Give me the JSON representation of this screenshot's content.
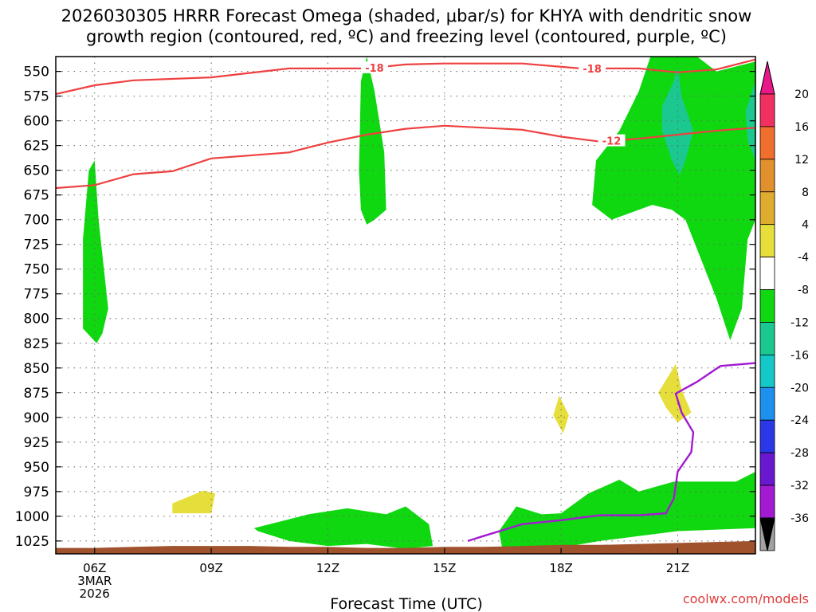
{
  "chart_data": {
    "type": "heatmap",
    "title_lines": [
      "2026030305 HRRR Forecast Omega (shaded, μbar/s) for KHYA with dendritic snow",
      "growth region (contoured, red, ºC) and freezing level (contoured, purple, ºC)"
    ],
    "xlabel": "Forecast Time (UTC)",
    "credit": "coolwx.com/models",
    "x_ticks": [
      {
        "hour": 6,
        "lines": [
          "06Z",
          "3MAR",
          "2026"
        ]
      },
      {
        "hour": 9,
        "lines": [
          "09Z"
        ]
      },
      {
        "hour": 12,
        "lines": [
          "12Z"
        ]
      },
      {
        "hour": 15,
        "lines": [
          "15Z"
        ]
      },
      {
        "hour": 18,
        "lines": [
          "18Z"
        ]
      },
      {
        "hour": 21,
        "lines": [
          "21Z"
        ]
      }
    ],
    "xlim": [
      5,
      23
    ],
    "y_ticks": [
      "550",
      "575",
      "600",
      "625",
      "650",
      "675",
      "700",
      "725",
      "750",
      "775",
      "800",
      "825",
      "850",
      "875",
      "900",
      "925",
      "950",
      "975",
      "1000",
      "1025"
    ],
    "ylim_mb": [
      535,
      1038
    ],
    "ylabel": "",
    "colorbar": {
      "levels": [
        "20",
        "16",
        "12",
        "8",
        "4",
        "-4",
        "-8",
        "-12",
        "-16",
        "-20",
        "-24",
        "-28",
        "-32",
        "-36"
      ],
      "colors": [
        "#f03060",
        "#f06e2e",
        "#e0902c",
        "#e0ac30",
        "#e6de3a",
        "#ffffff",
        "#10d810",
        "#1ac890",
        "#14c8c8",
        "#1e90f0",
        "#2a38e8",
        "#6a18d0",
        "#a21ad2",
        "#a2a2a2"
      ],
      "top_arrow": "#e81888",
      "bottom_arrow": "#000000"
    },
    "omega_regions": [
      {
        "band": "-8 to -4",
        "color": "#10d810",
        "points": [
          [
            6,
            640
          ],
          [
            6.1,
            700
          ],
          [
            6.35,
            790
          ],
          [
            6.2,
            815
          ],
          [
            6.05,
            825
          ],
          [
            5.7,
            810
          ],
          [
            5.7,
            720
          ],
          [
            5.85,
            650
          ]
        ]
      },
      {
        "band": "-8 to -4",
        "color": "#10d810",
        "points": [
          [
            13,
            535
          ],
          [
            13.2,
            570
          ],
          [
            13.45,
            632
          ],
          [
            13.5,
            690
          ],
          [
            13.2,
            700
          ],
          [
            13,
            705
          ],
          [
            12.85,
            690
          ],
          [
            12.8,
            650
          ],
          [
            12.85,
            560
          ]
        ]
      },
      {
        "band": "-8 to -4",
        "color": "#10d810",
        "points": [
          [
            20.3,
            535
          ],
          [
            21.5,
            535
          ],
          [
            22,
            550
          ],
          [
            23,
            540
          ],
          [
            23,
            700
          ],
          [
            22.8,
            720
          ],
          [
            22.65,
            790
          ],
          [
            22.35,
            822
          ],
          [
            22,
            780
          ],
          [
            21.55,
            735
          ],
          [
            21.2,
            700
          ],
          [
            20.85,
            690
          ],
          [
            20.35,
            685
          ],
          [
            20,
            690
          ],
          [
            19.3,
            700
          ],
          [
            18.8,
            685
          ],
          [
            18.9,
            640
          ],
          [
            19.5,
            610
          ],
          [
            20,
            570
          ]
        ]
      },
      {
        "band": "-12 to -8",
        "color": "#1ac890",
        "points": [
          [
            20.9,
            560
          ],
          [
            21,
            545
          ],
          [
            21.1,
            575
          ],
          [
            21.4,
            610
          ],
          [
            21.2,
            640
          ],
          [
            21.05,
            655
          ],
          [
            20.85,
            640
          ],
          [
            20.6,
            610
          ],
          [
            20.6,
            585
          ]
        ]
      },
      {
        "band": "-12 to -8",
        "color": "#1ac890",
        "points": [
          [
            23,
            560
          ],
          [
            23,
            640
          ],
          [
            22.8,
            620
          ],
          [
            22.75,
            590
          ]
        ]
      },
      {
        "band": "-8 to -4",
        "color": "#10d810",
        "points": [
          [
            10.1,
            1012
          ],
          [
            11.5,
            998
          ],
          [
            12.5,
            992
          ],
          [
            13.5,
            998
          ],
          [
            14,
            990
          ],
          [
            14.6,
            1008
          ],
          [
            14.7,
            1030
          ],
          [
            14,
            1033
          ],
          [
            13,
            1028
          ],
          [
            12,
            1030
          ],
          [
            11,
            1025
          ],
          [
            10.2,
            1015
          ]
        ]
      },
      {
        "band": "-8 to -4",
        "color": "#10d810",
        "points": [
          [
            16.4,
            1015
          ],
          [
            16.85,
            990
          ],
          [
            17.5,
            998
          ],
          [
            18,
            997
          ],
          [
            18.7,
            977
          ],
          [
            19.5,
            963
          ],
          [
            20,
            975
          ],
          [
            20.9,
            965
          ],
          [
            22,
            965
          ],
          [
            22.5,
            965
          ],
          [
            23,
            955
          ],
          [
            23,
            1012
          ],
          [
            21,
            1015
          ],
          [
            19,
            1025
          ],
          [
            17.5,
            1035
          ],
          [
            16.5,
            1035
          ]
        ]
      },
      {
        "band": "4 to 8",
        "color": "#e6de3a",
        "points": [
          [
            8.0,
            987
          ],
          [
            8.8,
            974
          ],
          [
            9.1,
            977
          ],
          [
            9.0,
            997
          ],
          [
            8.0,
            997
          ]
        ]
      },
      {
        "band": "4 to 8",
        "color": "#e6de3a",
        "points": [
          [
            17.95,
            878
          ],
          [
            18.2,
            898
          ],
          [
            18.05,
            916
          ],
          [
            17.8,
            898
          ]
        ]
      },
      {
        "band": "4 to 8",
        "color": "#e6de3a",
        "points": [
          [
            20.5,
            875
          ],
          [
            20.95,
            846
          ],
          [
            21.1,
            872
          ],
          [
            21.35,
            895
          ],
          [
            21.0,
            905
          ],
          [
            20.7,
            890
          ]
        ]
      }
    ],
    "temperature_contours": [
      {
        "level": "-18",
        "color": "#ee4040",
        "x": [
          5,
          6,
          7,
          9,
          11,
          13,
          14,
          15,
          17,
          18.5,
          20,
          21,
          22,
          23
        ],
        "y_mb": [
          573,
          564,
          559,
          556,
          547,
          547,
          543,
          542,
          542,
          547,
          547,
          551,
          548,
          538
        ]
      },
      {
        "level": "-12",
        "color": "#ee4040",
        "x": [
          5,
          6,
          7,
          8,
          9,
          11,
          12,
          13,
          14,
          15,
          16,
          17,
          18,
          19,
          20,
          21,
          22,
          23
        ],
        "y_mb": [
          668,
          665,
          654,
          651,
          638,
          632,
          622,
          614,
          608,
          605,
          607,
          609,
          616,
          621,
          618,
          614,
          610,
          607
        ]
      }
    ],
    "freezing_level": {
      "color": "#a21ad2",
      "x": [
        15.6,
        16,
        17,
        18,
        19,
        20,
        20.7,
        20.9,
        21,
        21.35,
        21.4,
        21.1,
        20.95,
        21.5,
        22.1,
        23
      ],
      "y_mb": [
        1025,
        1020,
        1008,
        1004,
        999,
        999,
        997,
        982,
        955,
        935,
        915,
        895,
        876,
        864,
        848,
        845
      ]
    },
    "terrain": {
      "color": "#a0522d",
      "x": [
        5,
        6,
        7,
        8,
        9,
        10,
        11,
        12,
        13,
        14,
        15,
        16,
        17,
        18,
        19,
        20,
        21,
        22,
        23
      ],
      "y_mb": [
        1032,
        1032,
        1031,
        1030,
        1030,
        1030,
        1031,
        1031,
        1032,
        1032,
        1031,
        1031,
        1030,
        1029,
        1029,
        1028,
        1027,
        1026,
        1025
      ]
    }
  }
}
